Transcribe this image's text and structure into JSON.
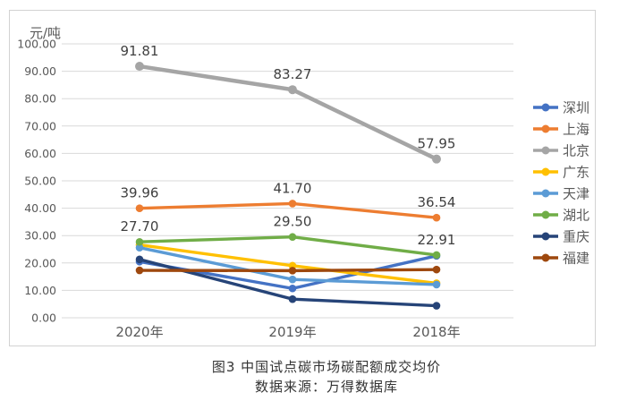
{
  "figure": {
    "axis_unit_label": "元/吨",
    "caption_title": "图3 中国试点碳市场碳配额成交均价",
    "caption_source": "数据来源：万得数据库"
  },
  "chart_data": {
    "type": "line",
    "title": "图3 中国试点碳市场碳配额成交均价",
    "source_note": "数据来源：万得数据库",
    "ylabel": "元/吨",
    "xlabel": "",
    "ylim": [
      0,
      100
    ],
    "grid": true,
    "legend_position": "right",
    "categories": [
      "2020年",
      "2019年",
      "2018年"
    ],
    "y_axis": {
      "tick_labels": [
        "100.00",
        "90.00",
        "80.00",
        "70.00",
        "60.00",
        "50.00",
        "40.00",
        "30.00",
        "20.00",
        "10.00",
        "0.00"
      ]
    },
    "series": [
      {
        "id": "shenzhen",
        "name": "深圳",
        "color": "#4472C4",
        "values": [
          20.5,
          10.7,
          22.6
        ],
        "labels": null
      },
      {
        "id": "shanghai",
        "name": "上海",
        "color": "#ED7D31",
        "values": [
          39.96,
          41.7,
          36.54
        ],
        "labels": [
          "39.96",
          "41.70",
          "36.54"
        ]
      },
      {
        "id": "beijing",
        "name": "北京",
        "color": "#A5A5A5",
        "values": [
          91.81,
          83.27,
          57.95
        ],
        "labels": [
          "91.81",
          "83.27",
          "57.95"
        ]
      },
      {
        "id": "guangdong",
        "name": "广东",
        "color": "#FFC000",
        "values": [
          26.6,
          19.0,
          12.6
        ],
        "labels": null
      },
      {
        "id": "tianjin",
        "name": "天津",
        "color": "#5B9BD5",
        "values": [
          25.6,
          14.0,
          12.1
        ],
        "labels": null
      },
      {
        "id": "hubei",
        "name": "湖北",
        "color": "#70AD47",
        "values": [
          27.7,
          29.5,
          22.91
        ],
        "labels": [
          "27.70",
          "29.50",
          "22.91"
        ]
      },
      {
        "id": "chongqing",
        "name": "重庆",
        "color": "#264478",
        "values": [
          21.3,
          6.8,
          4.4
        ],
        "labels": null
      },
      {
        "id": "fujian",
        "name": "福建",
        "color": "#9E480E",
        "values": [
          17.3,
          17.2,
          17.6
        ],
        "labels": null
      }
    ],
    "style": {
      "grid_color": "#d9d9d9",
      "tick_text_color": "#595959",
      "data_label_color": "#404040"
    }
  }
}
